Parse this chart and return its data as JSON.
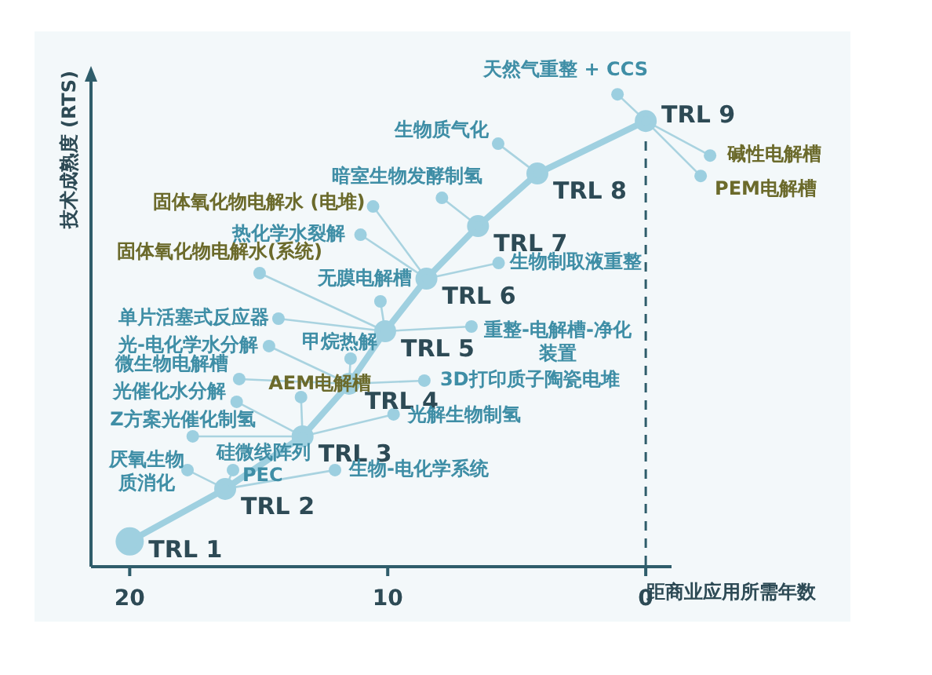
{
  "chart_data": {
    "type": "line",
    "xlabel": "距商业应用所需年数",
    "ylabel": "技术成熟度 (RTS)",
    "xlim": [
      21.5,
      -1
    ],
    "xticks": [
      20,
      10,
      0
    ],
    "grid": false,
    "legend": false,
    "marker": "circle",
    "line_style": "solid",
    "series": [
      {
        "color": "#9fd0e0",
        "x": [
          20,
          16.3,
          13.3,
          11.5,
          10.1,
          8.5,
          6.5,
          4.2,
          0
        ],
        "values": [
          1,
          2,
          3,
          4,
          5,
          6,
          7,
          8,
          9
        ],
        "value_labels": [
          "TRL 1",
          "TRL 2",
          "TRL 3",
          "TRL 4",
          "TRL 5",
          "TRL 6",
          "TRL 7",
          "TRL 8",
          "TRL 9"
        ]
      }
    ],
    "ref_lines": [
      {
        "axis": "x",
        "value": 0,
        "line_style": "dashed",
        "color": "#2f5d6b"
      }
    ],
    "annotations": [
      {
        "text": "天然气重整 + CCS",
        "x": 0,
        "y": 9
      },
      {
        "text": "碱性电解槽",
        "x": 0,
        "y": 9
      },
      {
        "text": "PEM电解槽",
        "x": 0,
        "y": 9
      },
      {
        "text": "生物质气化",
        "x": 4.2,
        "y": 8
      },
      {
        "text": "暗室生物发酵制氢",
        "x": 6.5,
        "y": 7
      },
      {
        "text": "固体氧化物电解水 (电堆)",
        "x": 8.5,
        "y": 6
      },
      {
        "text": "热化学水裂解",
        "x": 8.5,
        "y": 6
      },
      {
        "text": "生物制取液重整",
        "x": 8.5,
        "y": 6
      },
      {
        "text": "固体氧化物电解水(系统)",
        "x": 10.1,
        "y": 5
      },
      {
        "text": "无膜电解槽",
        "x": 10.1,
        "y": 5
      },
      {
        "text": "单片活塞式反应器",
        "x": 10.1,
        "y": 5
      },
      {
        "text": "重整-电解槽-净化装置",
        "x": 10.1,
        "y": 5
      },
      {
        "text": "光-电化学水分解",
        "x": 11.5,
        "y": 4
      },
      {
        "text": "甲烷热解",
        "x": 11.5,
        "y": 4
      },
      {
        "text": "3D打印质子陶瓷电堆",
        "x": 11.5,
        "y": 4
      },
      {
        "text": "微生物电解槽",
        "x": 11.5,
        "y": 4
      },
      {
        "text": "光催化水分解",
        "x": 13.3,
        "y": 3
      },
      {
        "text": "AEM电解槽",
        "x": 13.3,
        "y": 3
      },
      {
        "text": "Z方案光催化制氢",
        "x": 13.3,
        "y": 3
      },
      {
        "text": "光解生物制氢",
        "x": 13.3,
        "y": 3
      },
      {
        "text": "硅微线阵列",
        "x": 13.3,
        "y": 3
      },
      {
        "text": "PEC",
        "x": 16.3,
        "y": 2
      },
      {
        "text": "厌氧生物质消化",
        "x": 16.3,
        "y": 2
      },
      {
        "text": "生物-电化学系统",
        "x": 16.3,
        "y": 2
      }
    ]
  }
}
